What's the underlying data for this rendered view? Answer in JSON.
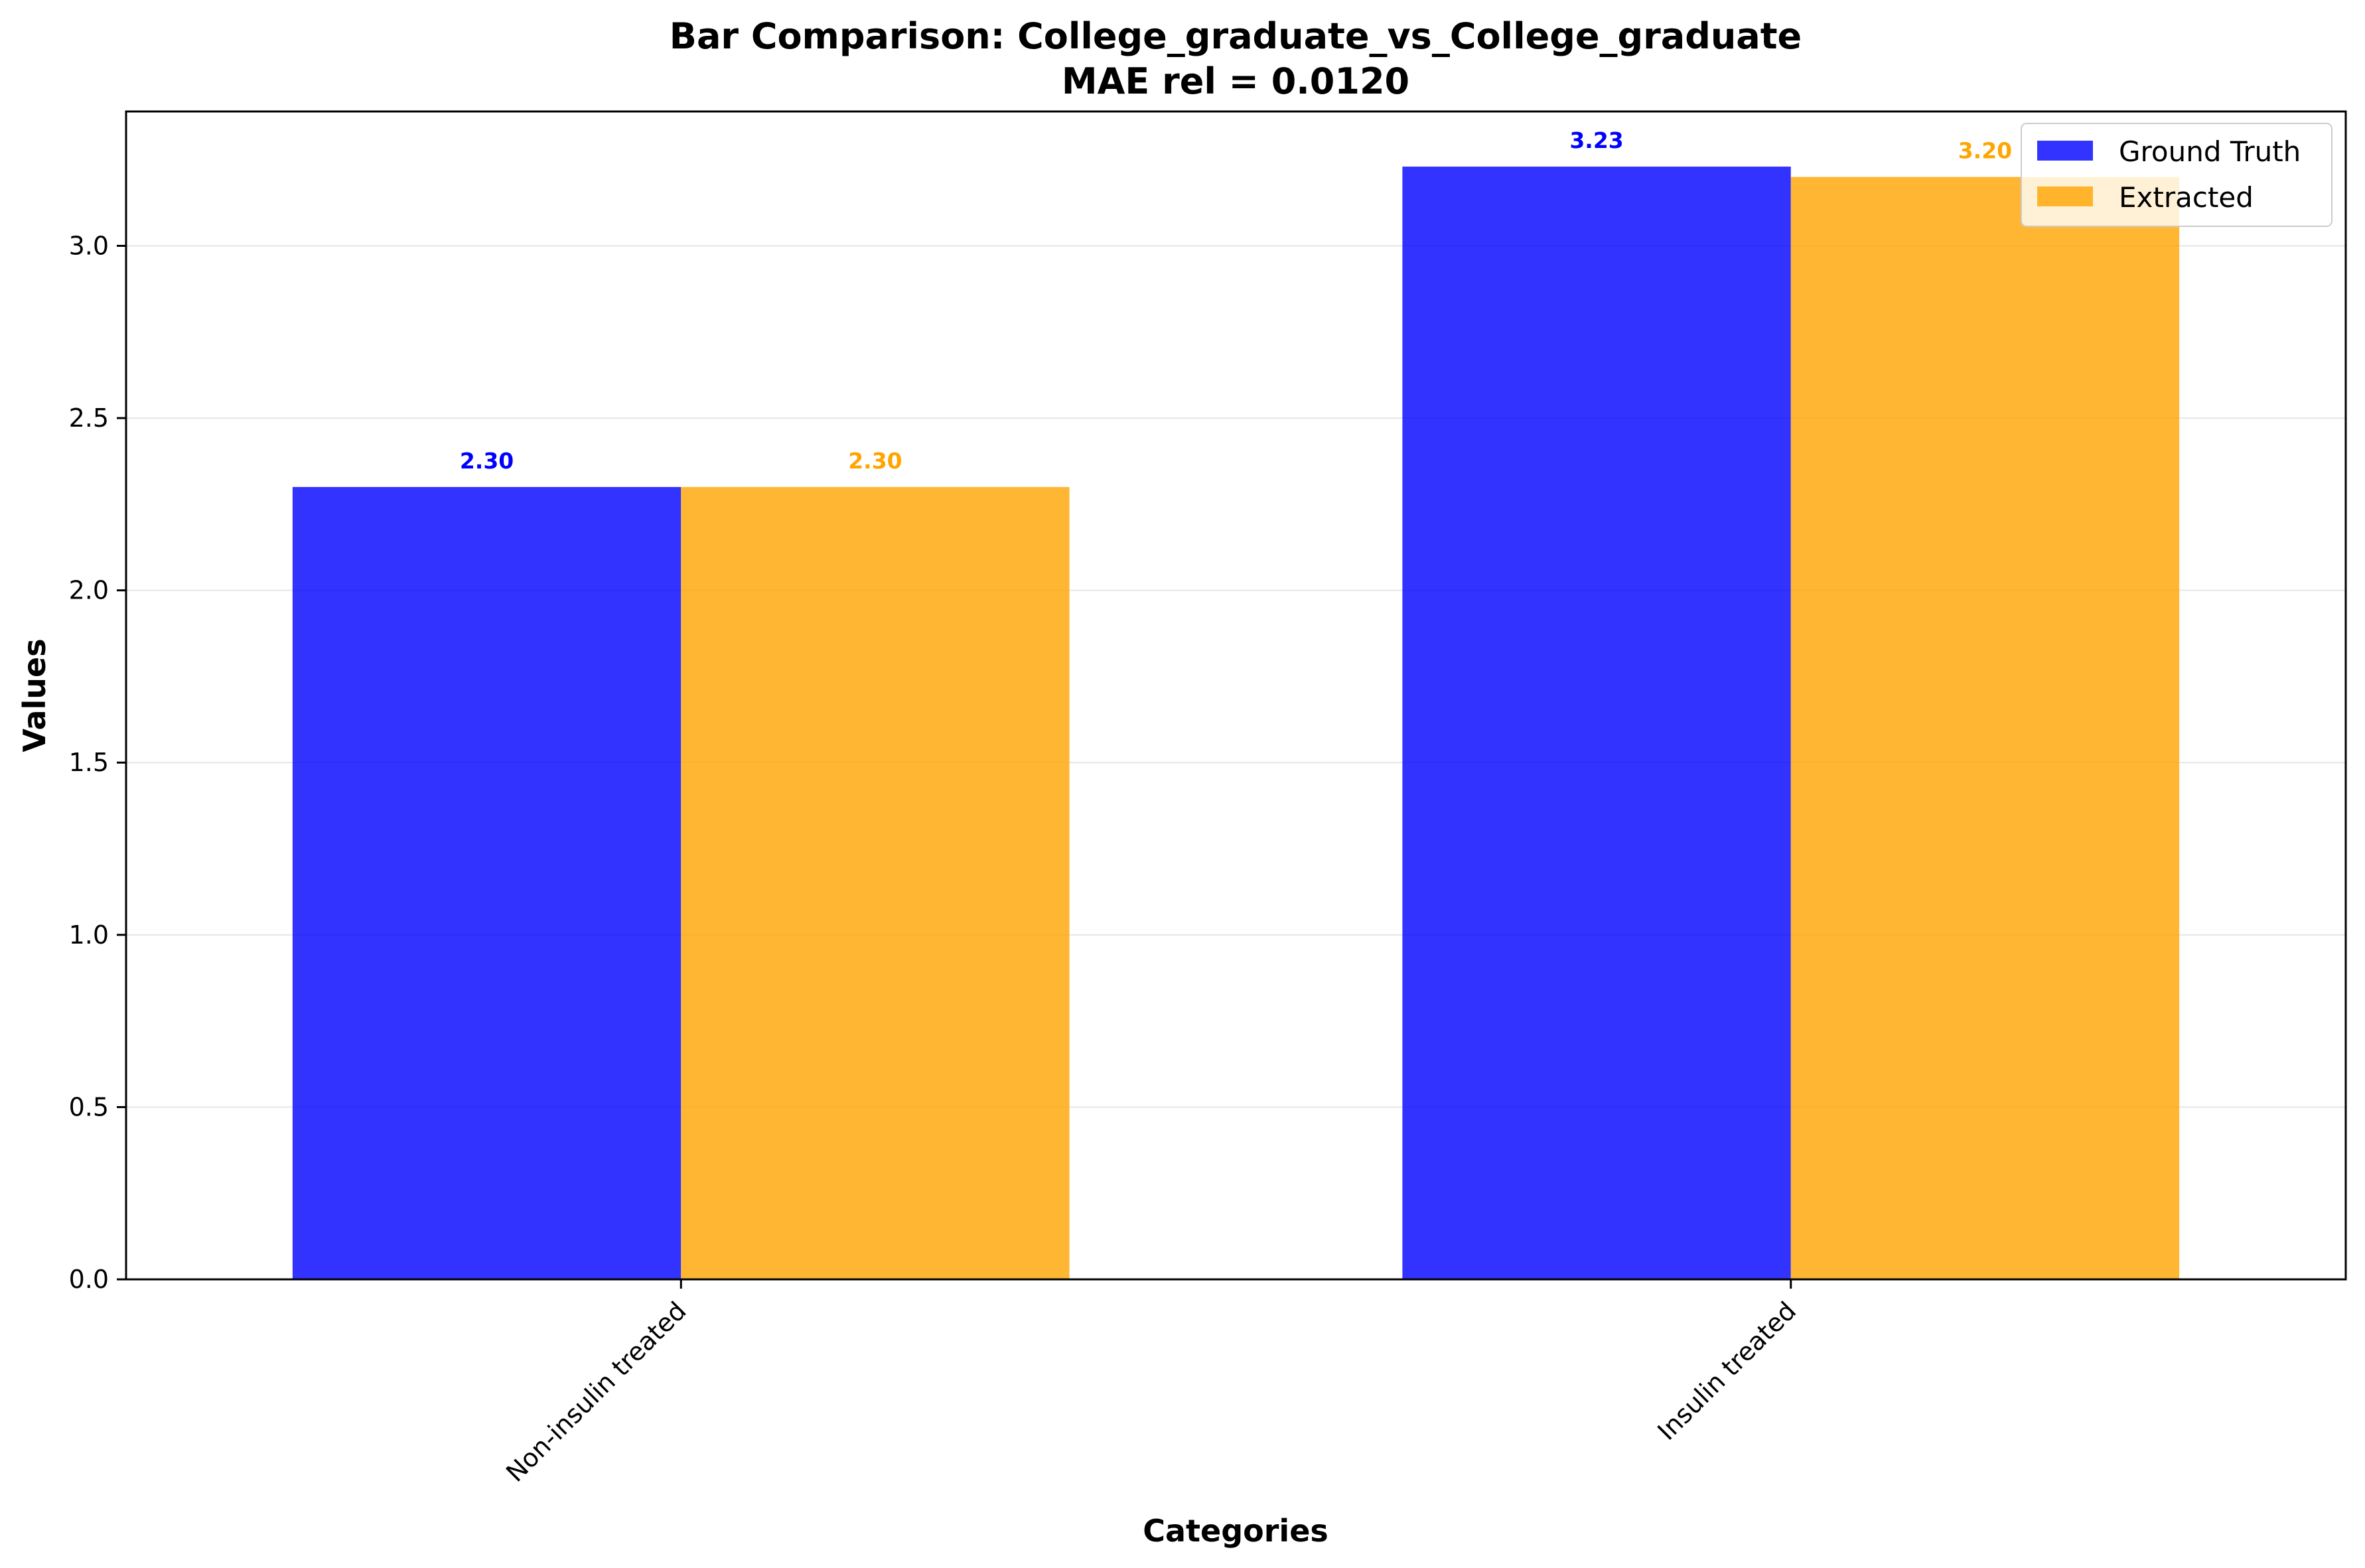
{
  "chart_data": {
    "type": "bar",
    "title": "Bar Comparison: College_graduate_vs_College_graduate",
    "subtitle": "MAE rel = 0.0120",
    "xlabel": "Categories",
    "ylabel": "Values",
    "categories": [
      "Non-insulin treated",
      "Insulin treated"
    ],
    "series": [
      {
        "name": "Ground Truth",
        "values": [
          2.3,
          3.23
        ],
        "labels": [
          "2.30",
          "3.23"
        ],
        "color": "#0000ff"
      },
      {
        "name": "Extracted",
        "values": [
          2.3,
          3.2
        ],
        "labels": [
          "2.30",
          "3.20"
        ],
        "color": "#ffa500"
      }
    ],
    "ylim": [
      0,
      3.39
    ],
    "yticks": [
      "0.0",
      "0.5",
      "1.0",
      "1.5",
      "2.0",
      "2.5",
      "3.0"
    ],
    "grid": true,
    "legend": "upper right"
  }
}
